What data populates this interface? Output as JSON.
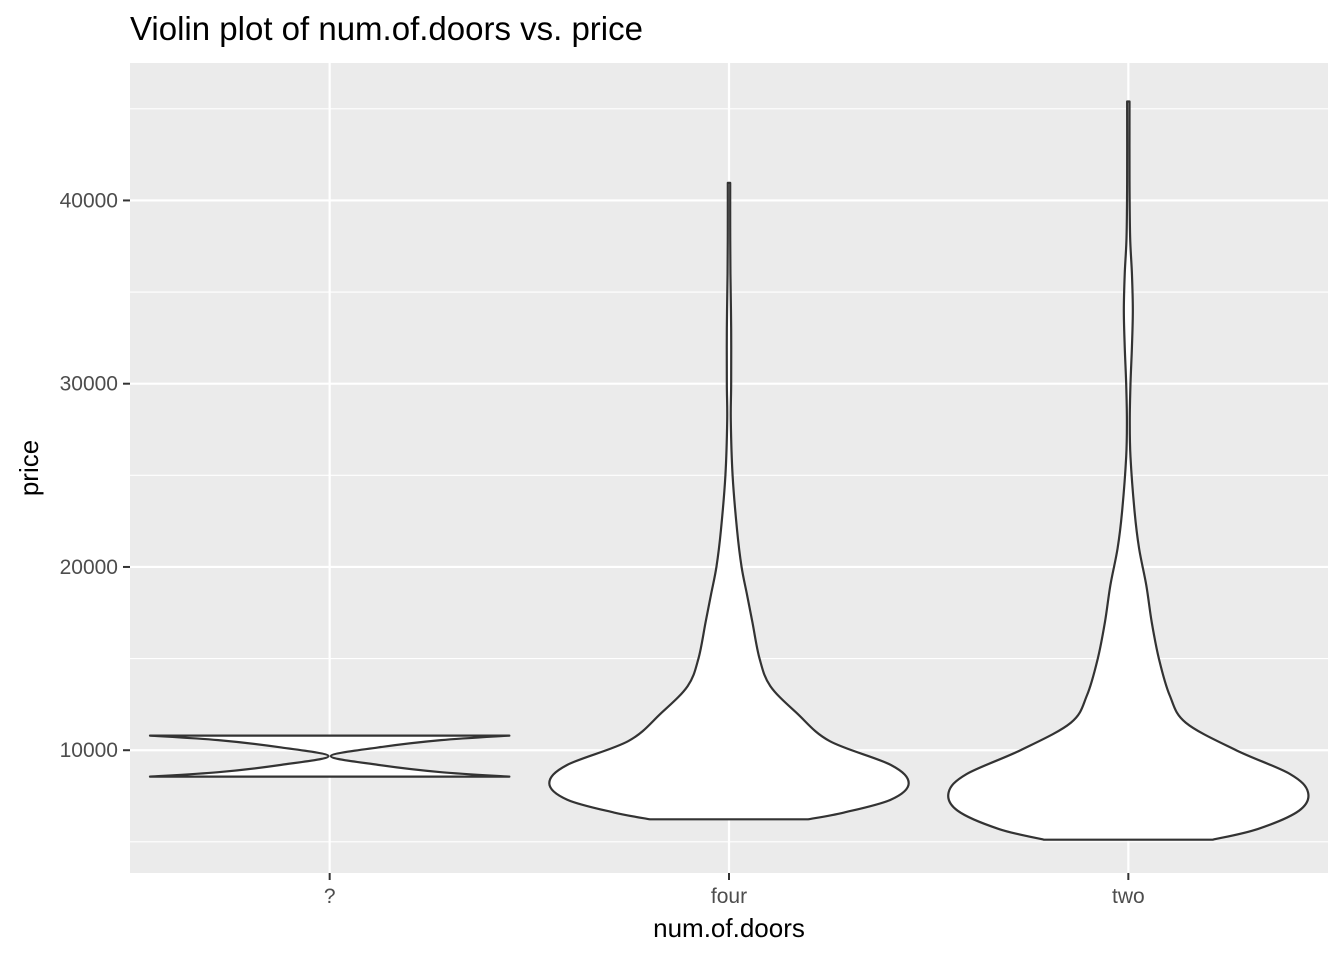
{
  "chart_data": {
    "type": "violin",
    "title": "Violin plot of num.of.doors vs. price",
    "xlabel": "num.of.doors",
    "ylabel": "price",
    "categories": [
      "?",
      "four",
      "two"
    ],
    "ylim": [
      3300,
      47500
    ],
    "yticks": [
      10000,
      20000,
      30000,
      40000
    ],
    "grid": true,
    "series": [
      {
        "category": "?",
        "min": 8558,
        "max": 10795,
        "density": [
          [
            8558,
            1.0
          ],
          [
            8800,
            0.62
          ],
          [
            9200,
            0.27
          ],
          [
            9676,
            0.0
          ],
          [
            10150,
            0.27
          ],
          [
            10550,
            0.62
          ],
          [
            10795,
            1.0
          ]
        ]
      },
      {
        "category": "four",
        "min": 6229,
        "max": 40960,
        "density": [
          [
            6229,
            0.44
          ],
          [
            6600,
            0.64
          ],
          [
            7300,
            0.9
          ],
          [
            8200,
            1.0
          ],
          [
            9200,
            0.9
          ],
          [
            10500,
            0.56
          ],
          [
            12000,
            0.38
          ],
          [
            13500,
            0.23
          ],
          [
            15000,
            0.17
          ],
          [
            17000,
            0.13
          ],
          [
            18500,
            0.1
          ],
          [
            20000,
            0.07
          ],
          [
            22000,
            0.045
          ],
          [
            25000,
            0.02
          ],
          [
            28000,
            0.01
          ],
          [
            30000,
            0.012
          ],
          [
            33000,
            0.012
          ],
          [
            36000,
            0.008
          ],
          [
            38500,
            0.004
          ],
          [
            40960,
            0.001
          ]
        ]
      },
      {
        "category": "two",
        "min": 5118,
        "max": 45400,
        "density": [
          [
            5118,
            0.47
          ],
          [
            5700,
            0.72
          ],
          [
            6700,
            0.95
          ],
          [
            7700,
            1.0
          ],
          [
            8700,
            0.9
          ],
          [
            10000,
            0.6
          ],
          [
            11500,
            0.32
          ],
          [
            13000,
            0.23
          ],
          [
            15000,
            0.17
          ],
          [
            17000,
            0.13
          ],
          [
            19000,
            0.1
          ],
          [
            21000,
            0.06
          ],
          [
            23000,
            0.035
          ],
          [
            26000,
            0.012
          ],
          [
            28000,
            0.008
          ],
          [
            30000,
            0.012
          ],
          [
            32000,
            0.02
          ],
          [
            34000,
            0.025
          ],
          [
            36000,
            0.02
          ],
          [
            38000,
            0.01
          ],
          [
            41000,
            0.005
          ],
          [
            45400,
            0.002
          ]
        ]
      }
    ]
  }
}
